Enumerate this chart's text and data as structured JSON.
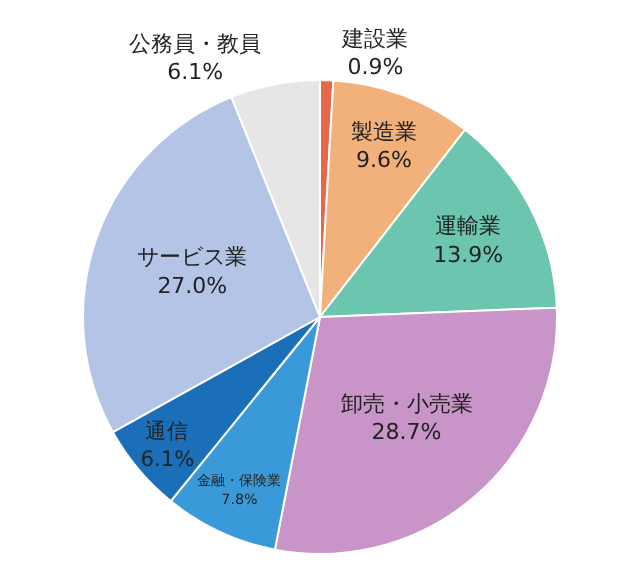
{
  "chart_data": {
    "type": "pie",
    "categories": [
      "建設業",
      "製造業",
      "運輸業",
      "卸売・小売業",
      "金融・保険業",
      "通信",
      "サービス業",
      "公務員・教員"
    ],
    "values": [
      0.9,
      9.6,
      13.9,
      28.7,
      7.8,
      6.1,
      27.0,
      6.1
    ],
    "value_labels": [
      "0.9%",
      "9.6%",
      "13.9%",
      "28.7%",
      "7.8%",
      "6.1%",
      "27.0%",
      "6.1%"
    ],
    "colors": [
      "#e8664a",
      "#f2b07a",
      "#6cc5ae",
      "#c994c7",
      "#3a9ad9",
      "#1a6fb8",
      "#b4c4e6",
      "#e6e6e6"
    ],
    "legend": false
  }
}
